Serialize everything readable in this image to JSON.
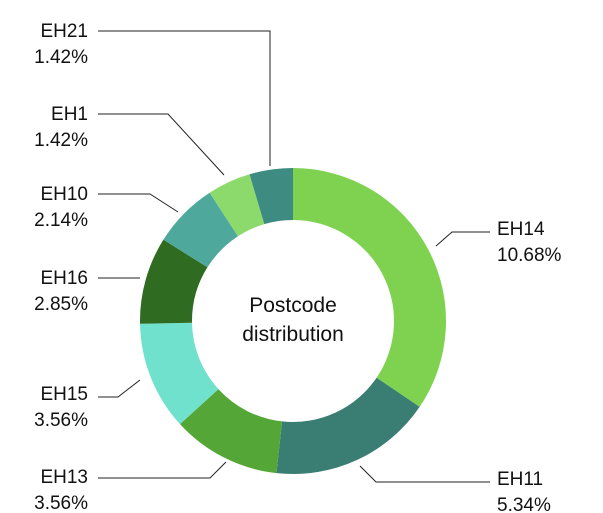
{
  "chart_data": {
    "type": "donut",
    "title": "Postcode distribution",
    "categories": [
      "EH14",
      "EH11",
      "EH13",
      "EH15",
      "EH16",
      "EH10",
      "EH1",
      "EH21"
    ],
    "values": [
      10.68,
      5.34,
      3.56,
      3.56,
      2.85,
      2.14,
      1.42,
      1.42
    ],
    "value_labels": [
      "10.68%",
      "5.34%",
      "3.56%",
      "3.56%",
      "2.85%",
      "2.14%",
      "1.42%",
      "1.42%"
    ],
    "colors": [
      "#7ed24f",
      "#3a7d73",
      "#54a736",
      "#6fe1cc",
      "#2f6b20",
      "#4ea89b",
      "#8cda6b",
      "#3e8b81"
    ]
  }
}
